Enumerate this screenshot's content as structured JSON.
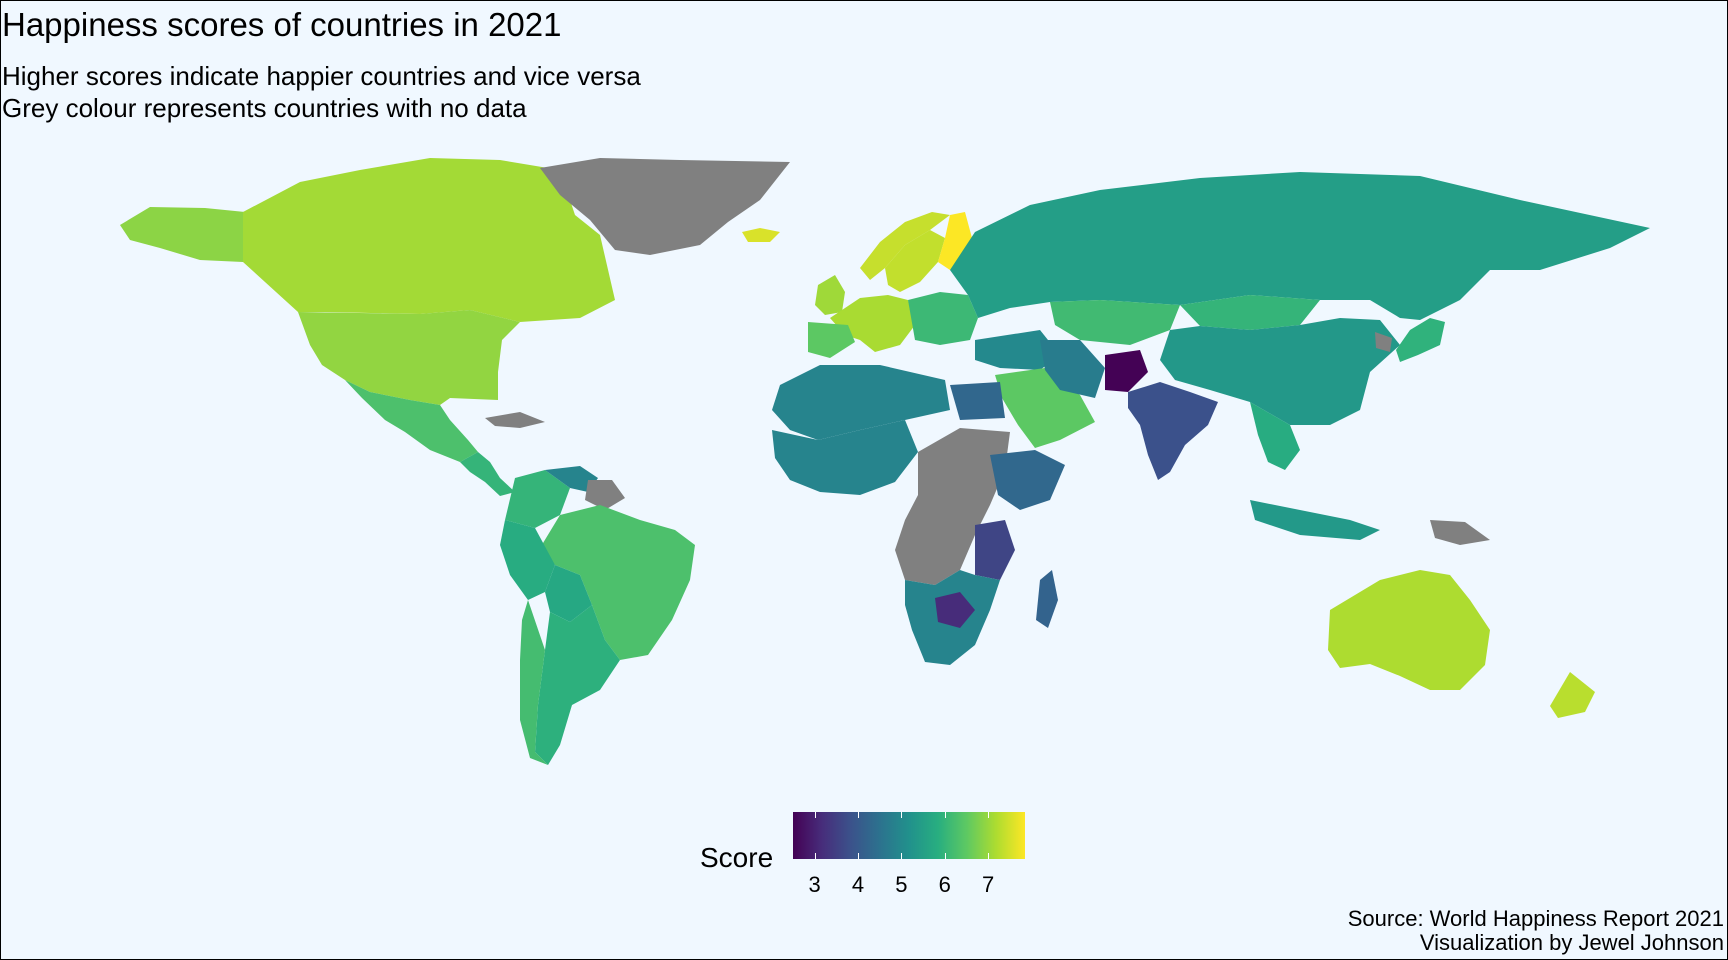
{
  "title": "Happiness scores of countries in 2021",
  "subtitle_lines": [
    "Higher scores indicate happier countries and vice versa",
    "Grey colour represents countries with no data"
  ],
  "legend": {
    "title": "Score",
    "ticks": [
      "3",
      "4",
      "5",
      "6",
      "7"
    ],
    "tick_values": [
      3,
      4,
      5,
      6,
      7
    ],
    "range": [
      2.5,
      7.85
    ],
    "colormap": "viridis"
  },
  "caption_lines": [
    "Source: World Happiness Report 2021",
    "Visualization by Jewel Johnson"
  ],
  "colors": {
    "background": "#f0f8ff",
    "no_data": "#808080",
    "viridis_stops": [
      "#440154",
      "#472d7b",
      "#3b528b",
      "#2c728e",
      "#21918c",
      "#28ae80",
      "#5ec962",
      "#addc30",
      "#fde725"
    ]
  },
  "map": {
    "regions": [
      {
        "name": "Alaska",
        "score": 6.9
      },
      {
        "name": "Canada",
        "score": 7.1
      },
      {
        "name": "United States",
        "score": 6.95
      },
      {
        "name": "Greenland",
        "score": null
      },
      {
        "name": "Iceland",
        "score": 7.55
      },
      {
        "name": "Mexico",
        "score": 6.3
      },
      {
        "name": "Central America",
        "score": 6.0
      },
      {
        "name": "Caribbean",
        "score": null
      },
      {
        "name": "Colombia",
        "score": 6.0
      },
      {
        "name": "Venezuela",
        "score": 4.9
      },
      {
        "name": "Guiana Shield",
        "score": null
      },
      {
        "name": "Brazil",
        "score": 6.3
      },
      {
        "name": "Peru",
        "score": 5.8
      },
      {
        "name": "Bolivia",
        "score": 5.7
      },
      {
        "name": "Argentina",
        "score": 5.9
      },
      {
        "name": "Chile",
        "score": 6.2
      },
      {
        "name": "Norway",
        "score": 7.39
      },
      {
        "name": "Sweden",
        "score": 7.36
      },
      {
        "name": "Finland",
        "score": 7.84
      },
      {
        "name": "United Kingdom",
        "score": 7.06
      },
      {
        "name": "Western Europe",
        "score": 7.15
      },
      {
        "name": "Iberia",
        "score": 6.49
      },
      {
        "name": "Eastern Europe",
        "score": 6.1
      },
      {
        "name": "Russia",
        "score": 5.48
      },
      {
        "name": "Kazakhstan",
        "score": 6.15
      },
      {
        "name": "Mongolia",
        "score": 6.0
      },
      {
        "name": "China",
        "score": 5.34
      },
      {
        "name": "Middle East",
        "score": 5.0
      },
      {
        "name": "Saudi Arabia",
        "score": 6.49
      },
      {
        "name": "Iran",
        "score": 4.72
      },
      {
        "name": "Afghanistan",
        "score": 2.52
      },
      {
        "name": "India",
        "score": 3.82
      },
      {
        "name": "Southeast Asia",
        "score": 5.8
      },
      {
        "name": "Indonesia",
        "score": 5.35
      },
      {
        "name": "Japan",
        "score": 5.94
      },
      {
        "name": "North Korea",
        "score": null
      },
      {
        "name": "Papua New Guinea",
        "score": null
      },
      {
        "name": "Australia",
        "score": 7.18
      },
      {
        "name": "New Zealand",
        "score": 7.28
      },
      {
        "name": "Sahara Band",
        "score": 4.9
      },
      {
        "name": "West Africa",
        "score": 4.9
      },
      {
        "name": "Egypt",
        "score": 4.28
      },
      {
        "name": "Central Africa",
        "score": null
      },
      {
        "name": "Horn of Africa",
        "score": 4.3
      },
      {
        "name": "Tanzania",
        "score": 3.6
      },
      {
        "name": "Southern Africa",
        "score": 4.9
      },
      {
        "name": "Zimbabwe",
        "score": 3.15
      },
      {
        "name": "Madagascar",
        "score": 4.2
      }
    ]
  }
}
